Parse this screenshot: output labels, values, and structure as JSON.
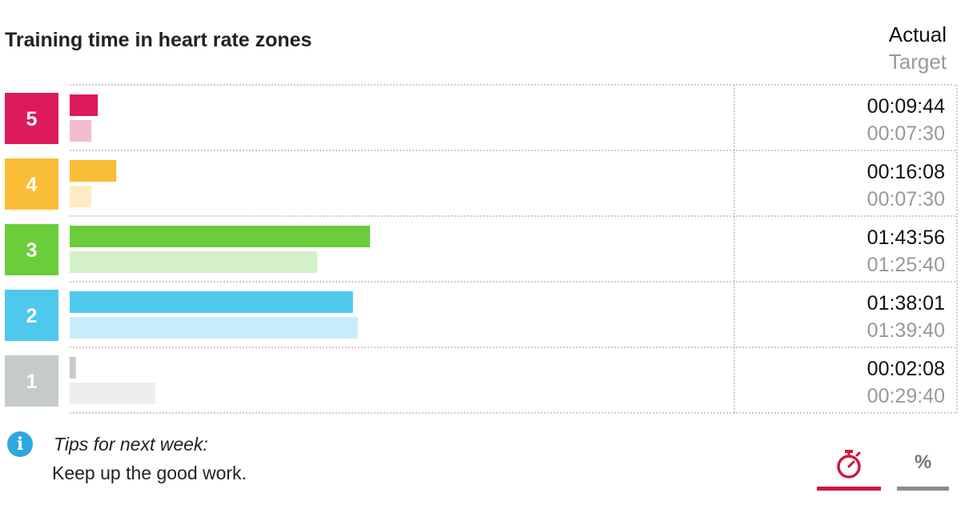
{
  "header": {
    "title": "Training time in heart rate zones",
    "legend_actual": "Actual",
    "legend_target": "Target"
  },
  "chart_data": {
    "type": "bar",
    "orientation": "horizontal",
    "title": "Training time in heart rate zones",
    "categories": [
      "5",
      "4",
      "3",
      "2",
      "1"
    ],
    "units": "minutes",
    "series": [
      {
        "name": "Actual",
        "values": [
          9.73,
          16.13,
          103.93,
          98.02,
          2.13
        ]
      },
      {
        "name": "Target",
        "values": [
          7.5,
          7.5,
          85.67,
          99.67,
          29.67
        ]
      }
    ],
    "actual_labels": [
      "00:09:44",
      "00:16:08",
      "01:43:56",
      "01:38:01",
      "00:02:08"
    ],
    "target_labels": [
      "00:07:30",
      "00:07:30",
      "01:25:40",
      "01:39:40",
      "00:29:40"
    ],
    "xlim": [
      0,
      230
    ],
    "zone_colors": [
      "#dd1a5c",
      "#f9bd38",
      "#6ccd3b",
      "#4ec8ec",
      "#c4cbca"
    ],
    "target_colors": [
      "#f4bccf",
      "#fdecc3",
      "#d4f0c6",
      "#c9edf8",
      "#ecefee"
    ],
    "grid": "dotted row separators",
    "legend": "top-right"
  },
  "tips": {
    "heading": "Tips for next week:",
    "text": "Keep up the good work."
  },
  "tabs": {
    "time_icon": "stopwatch-icon",
    "percent_label": "%",
    "active_color": "#d0173d",
    "inactive_color": "#8c8c8c"
  }
}
